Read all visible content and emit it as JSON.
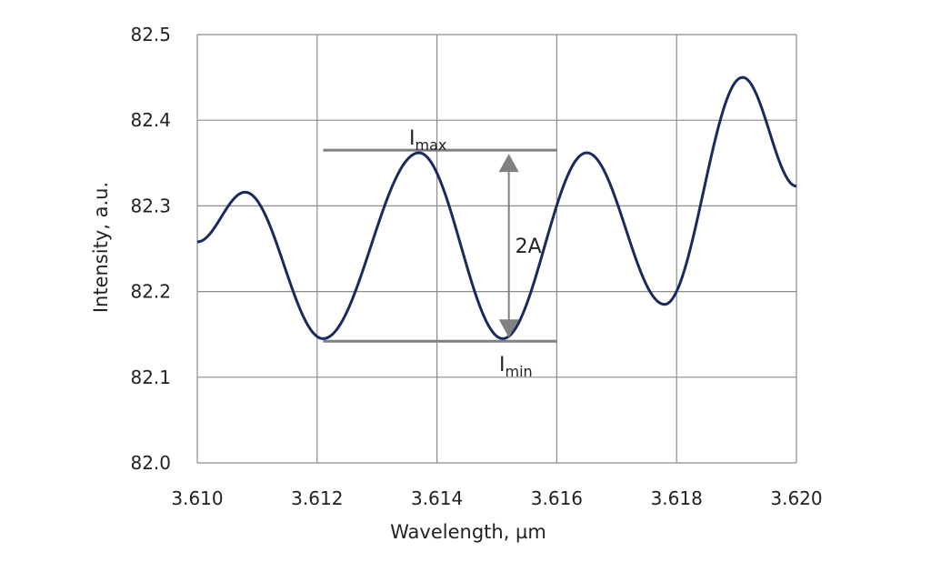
{
  "chart_data": {
    "type": "line",
    "title": "",
    "xlabel": "Wavelength, µm",
    "ylabel": "Intensity, a.u.",
    "xlim": [
      3.61,
      3.62
    ],
    "ylim": [
      82.0,
      82.5
    ],
    "x_ticks": [
      "3.610",
      "3.612",
      "3.614",
      "3.616",
      "3.618",
      "3.620"
    ],
    "y_ticks": [
      "82.0",
      "82.1",
      "82.2",
      "82.3",
      "82.4",
      "82.5"
    ],
    "grid": true,
    "legend": "none",
    "series": [
      {
        "color": "#1b2a5e",
        "points": [
          [
            3.61,
            82.258
          ],
          [
            3.6108,
            82.316
          ],
          [
            3.6121,
            82.145
          ],
          [
            3.6137,
            82.362
          ],
          [
            3.6151,
            82.145
          ],
          [
            3.6165,
            82.362
          ],
          [
            3.6178,
            82.185
          ],
          [
            3.6191,
            82.45
          ],
          [
            3.62,
            82.323
          ]
        ]
      }
    ],
    "annotations": {
      "i_max": {
        "main": "I",
        "sub": "max",
        "y": 82.365
      },
      "i_min": {
        "main": "I",
        "sub": "min",
        "y": 82.142
      },
      "line_x_range": [
        3.6121,
        3.616
      ],
      "arrow_x": 3.6152,
      "amplitude_label": "2A",
      "reference_color": "#808080"
    }
  }
}
